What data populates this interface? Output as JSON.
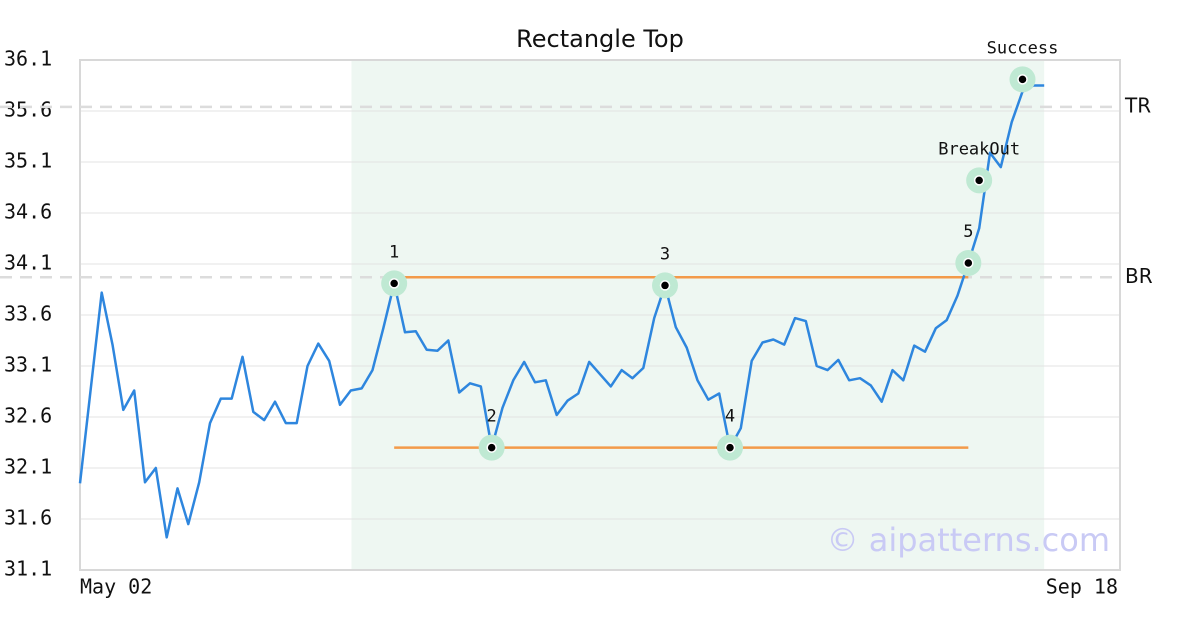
{
  "chart_data": {
    "type": "line",
    "title": "Rectangle Top",
    "xlim": [
      0,
      96
    ],
    "xticks": [
      {
        "value": 0,
        "label": "May 02"
      },
      {
        "value": 96,
        "label": "Sep 18"
      }
    ],
    "ylim": [
      31.1,
      36.1
    ],
    "yticks": [
      31.1,
      31.6,
      32.1,
      32.6,
      33.1,
      33.6,
      34.1,
      34.6,
      35.1,
      35.6,
      36.1
    ],
    "grid": true,
    "color": "#2e86de",
    "values": [
      31.95,
      32.88,
      33.82,
      33.31,
      32.67,
      32.86,
      31.96,
      32.1,
      31.42,
      31.9,
      31.55,
      31.96,
      32.54,
      32.78,
      32.78,
      33.19,
      32.65,
      32.57,
      32.75,
      32.54,
      32.54,
      33.1,
      33.32,
      33.15,
      32.72,
      32.86,
      32.88,
      33.06,
      33.47,
      33.91,
      33.43,
      33.44,
      33.26,
      33.25,
      33.35,
      32.84,
      32.93,
      32.9,
      32.3,
      32.69,
      32.96,
      33.14,
      32.94,
      32.96,
      32.62,
      32.76,
      32.83,
      33.14,
      33.02,
      32.9,
      33.06,
      32.98,
      33.08,
      33.57,
      33.89,
      33.48,
      33.28,
      32.96,
      32.77,
      32.83,
      32.3,
      32.49,
      33.15,
      33.33,
      33.36,
      33.31,
      33.57,
      33.54,
      33.1,
      33.06,
      33.16,
      32.96,
      32.98,
      32.91,
      32.75,
      33.06,
      32.96,
      33.3,
      33.24,
      33.47,
      33.55,
      33.79,
      34.11,
      34.45,
      35.19,
      35.05,
      35.49,
      35.79,
      35.85,
      35.85
    ],
    "highlight_range": {
      "start": 27,
      "end": 89,
      "color": "#eef7f2"
    },
    "levels": [
      {
        "name": "TR",
        "value": 35.64
      },
      {
        "name": "BR",
        "value": 33.97
      }
    ],
    "pattern_lines": [
      {
        "from": 29,
        "to": 82,
        "value": 33.97,
        "color": "#f39a4a"
      },
      {
        "from": 29,
        "to": 82,
        "value": 32.3,
        "color": "#f39a4a"
      }
    ],
    "points": [
      {
        "label": "1",
        "x": 29,
        "value": 33.91
      },
      {
        "label": "2",
        "x": 38,
        "value": 32.3
      },
      {
        "label": "3",
        "x": 54,
        "value": 33.89
      },
      {
        "label": "4",
        "x": 60,
        "value": 32.3
      },
      {
        "label": "5",
        "x": 82,
        "value": 34.11
      },
      {
        "label": "BreakOut",
        "x": 83,
        "value": 34.92
      },
      {
        "label": "Success",
        "x": 87,
        "value": 35.91
      }
    ],
    "watermark": "© aipatterns.com"
  }
}
